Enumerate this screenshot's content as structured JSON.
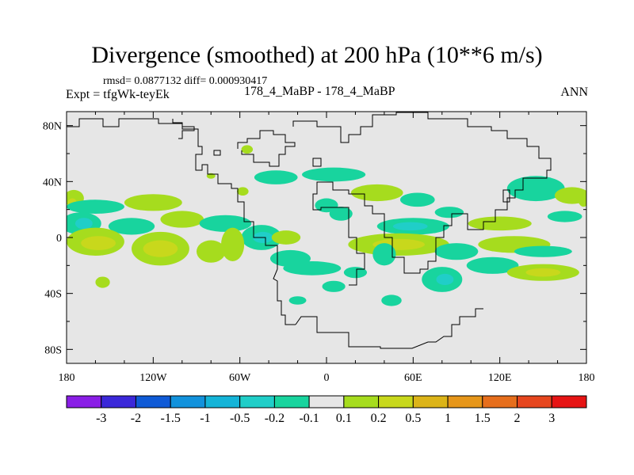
{
  "title": "Divergence (smoothed) at 200 hPa (10**6 m/s)",
  "stats_line": "rmsd= 0.0877132 diff= 0.000930417",
  "expt_line": "Expt = tfgWk-teyEk",
  "case_line": "178_4_MaBP - 178_4_MaBP",
  "season": "ANN",
  "colors": {
    "background": "#e6e6e6",
    "frame": "#000000",
    "coast": "#000000"
  },
  "chart_data": {
    "type": "heatmap",
    "projection": "cylindrical-equidistant",
    "title": "Divergence (smoothed) at 200 hPa (10**6 m/s)",
    "xlim": [
      -180,
      180
    ],
    "ylim": [
      -90,
      90
    ],
    "x_ticks": [
      {
        "value": -180,
        "label": "180"
      },
      {
        "value": -120,
        "label": "120W"
      },
      {
        "value": -60,
        "label": "60W"
      },
      {
        "value": 0,
        "label": "0"
      },
      {
        "value": 60,
        "label": "60E"
      },
      {
        "value": 120,
        "label": "120E"
      },
      {
        "value": 180,
        "label": "180"
      }
    ],
    "y_ticks": [
      {
        "value": 80,
        "label": "80N"
      },
      {
        "value": 40,
        "label": "40N"
      },
      {
        "value": 0,
        "label": "0"
      },
      {
        "value": -40,
        "label": "40S"
      },
      {
        "value": -80,
        "label": "80S"
      }
    ],
    "colorbar": {
      "labels": [
        "-3",
        "-2",
        "-1.5",
        "-1",
        "-0.5",
        "-0.2",
        "-0.1",
        "0.1",
        "0.2",
        "0.5",
        "1",
        "1.5",
        "2",
        "3"
      ],
      "colors": [
        "#8a1ee6",
        "#3b28d9",
        "#0f5ad6",
        "#1292dc",
        "#14b4d8",
        "#20cec8",
        "#18d49e",
        "#e6e6e6",
        "#a6dc1e",
        "#c8d81c",
        "#dcb418",
        "#e6961a",
        "#e66e1c",
        "#e6461e",
        "#e61414"
      ]
    },
    "levels": {
      "neg_small": "#18d49e",
      "neg_mid": "#20cec8",
      "pos_small": "#a6dc1e",
      "pos_mid": "#c8d81c"
    },
    "blobs": [
      {
        "lon": -175,
        "lat": 28,
        "rlon": 7,
        "rlat": 6,
        "level": "pos_small"
      },
      {
        "lon": -176,
        "lat": 25,
        "rlon": 3,
        "rlat": 3,
        "level": "pos_mid"
      },
      {
        "lon": -160,
        "lat": 22,
        "rlon": 20,
        "rlat": 5,
        "level": "neg_small"
      },
      {
        "lon": -120,
        "lat": 25,
        "rlon": 20,
        "rlat": 6,
        "level": "pos_small"
      },
      {
        "lon": -100,
        "lat": 13,
        "rlon": 15,
        "rlat": 6,
        "level": "pos_small"
      },
      {
        "lon": -170,
        "lat": 10,
        "rlon": 14,
        "rlat": 8,
        "level": "neg_small"
      },
      {
        "lon": -168,
        "lat": 10,
        "rlon": 6,
        "rlat": 4,
        "level": "neg_mid"
      },
      {
        "lon": -135,
        "lat": 8,
        "rlon": 16,
        "rlat": 6,
        "level": "neg_small"
      },
      {
        "lon": -70,
        "lat": 10,
        "rlon": 18,
        "rlat": 6,
        "level": "neg_small"
      },
      {
        "lon": -160,
        "lat": -3,
        "rlon": 20,
        "rlat": 10,
        "level": "pos_small"
      },
      {
        "lon": -158,
        "lat": -4,
        "rlon": 12,
        "rlat": 5,
        "level": "pos_mid"
      },
      {
        "lon": -115,
        "lat": -8,
        "rlon": 20,
        "rlat": 12,
        "level": "pos_small"
      },
      {
        "lon": -115,
        "lat": -8,
        "rlon": 12,
        "rlat": 6,
        "level": "pos_mid"
      },
      {
        "lon": -80,
        "lat": -10,
        "rlon": 10,
        "rlat": 8,
        "level": "pos_small"
      },
      {
        "lon": -45,
        "lat": 0,
        "rlon": 14,
        "rlat": 9,
        "level": "neg_small"
      },
      {
        "lon": -44,
        "lat": 0,
        "rlon": 7,
        "rlat": 4,
        "level": "neg_mid"
      },
      {
        "lon": -65,
        "lat": -5,
        "rlon": 8,
        "rlat": 12,
        "level": "pos_small"
      },
      {
        "lon": -28,
        "lat": 0,
        "rlon": 10,
        "rlat": 5,
        "level": "pos_small"
      },
      {
        "lon": -25,
        "lat": -15,
        "rlon": 14,
        "rlat": 6,
        "level": "neg_small"
      },
      {
        "lon": -155,
        "lat": -32,
        "rlon": 5,
        "rlat": 4,
        "level": "pos_small"
      },
      {
        "lon": -80,
        "lat": 44,
        "rlon": 3,
        "rlat": 2,
        "level": "pos_small"
      },
      {
        "lon": -35,
        "lat": 43,
        "rlon": 15,
        "rlat": 5,
        "level": "neg_small"
      },
      {
        "lon": 5,
        "lat": 45,
        "rlon": 22,
        "rlat": 5,
        "level": "neg_small"
      },
      {
        "lon": -58,
        "lat": 33,
        "rlon": 4,
        "rlat": 3,
        "level": "pos_small"
      },
      {
        "lon": 0,
        "lat": 23,
        "rlon": 8,
        "rlat": 5,
        "level": "neg_small"
      },
      {
        "lon": 35,
        "lat": 32,
        "rlon": 18,
        "rlat": 6,
        "level": "pos_small"
      },
      {
        "lon": 10,
        "lat": 17,
        "rlon": 8,
        "rlat": 5,
        "level": "neg_small"
      },
      {
        "lon": 63,
        "lat": 27,
        "rlon": 12,
        "rlat": 5,
        "level": "neg_small"
      },
      {
        "lon": 60,
        "lat": 8,
        "rlon": 25,
        "rlat": 6,
        "level": "neg_small"
      },
      {
        "lon": 58,
        "lat": 8,
        "rlon": 12,
        "rlat": 3,
        "level": "neg_mid"
      },
      {
        "lon": 50,
        "lat": -5,
        "rlon": 35,
        "rlat": 8,
        "level": "pos_small"
      },
      {
        "lon": 50,
        "lat": -5,
        "rlon": 18,
        "rlat": 4,
        "level": "pos_mid"
      },
      {
        "lon": 40,
        "lat": -12,
        "rlon": 8,
        "rlat": 8,
        "level": "neg_small"
      },
      {
        "lon": 90,
        "lat": -10,
        "rlon": 15,
        "rlat": 6,
        "level": "neg_small"
      },
      {
        "lon": 130,
        "lat": -5,
        "rlon": 25,
        "rlat": 6,
        "level": "pos_small"
      },
      {
        "lon": 150,
        "lat": -10,
        "rlon": 20,
        "rlat": 4,
        "level": "neg_small"
      },
      {
        "lon": 80,
        "lat": -30,
        "rlon": 14,
        "rlat": 9,
        "level": "neg_small"
      },
      {
        "lon": 82,
        "lat": -30,
        "rlon": 6,
        "rlat": 4,
        "level": "neg_mid"
      },
      {
        "lon": 115,
        "lat": -20,
        "rlon": 18,
        "rlat": 6,
        "level": "neg_small"
      },
      {
        "lon": 150,
        "lat": -25,
        "rlon": 25,
        "rlat": 6,
        "level": "pos_small"
      },
      {
        "lon": 150,
        "lat": -25,
        "rlon": 12,
        "rlat": 3,
        "level": "pos_mid"
      },
      {
        "lon": -10,
        "lat": -22,
        "rlon": 20,
        "rlat": 5,
        "level": "neg_small"
      },
      {
        "lon": 5,
        "lat": -35,
        "rlon": 8,
        "rlat": 4,
        "level": "neg_small"
      },
      {
        "lon": -20,
        "lat": -45,
        "rlon": 6,
        "rlat": 3,
        "level": "neg_small"
      },
      {
        "lon": 45,
        "lat": -45,
        "rlon": 7,
        "rlat": 4,
        "level": "neg_small"
      },
      {
        "lon": 20,
        "lat": -25,
        "rlon": 8,
        "rlat": 4,
        "level": "neg_small"
      },
      {
        "lon": 145,
        "lat": 35,
        "rlon": 20,
        "rlat": 9,
        "level": "neg_small"
      },
      {
        "lon": 170,
        "lat": 30,
        "rlon": 12,
        "rlat": 6,
        "level": "pos_small"
      },
      {
        "lon": 165,
        "lat": 15,
        "rlon": 12,
        "rlat": 4,
        "level": "neg_small"
      },
      {
        "lon": 178,
        "lat": 28,
        "rlon": 4,
        "rlat": 6,
        "level": "pos_small"
      },
      {
        "lon": 120,
        "lat": 10,
        "rlon": 22,
        "rlat": 5,
        "level": "pos_small"
      },
      {
        "lon": 85,
        "lat": 18,
        "rlon": 10,
        "rlat": 4,
        "level": "neg_small"
      },
      {
        "lon": -55,
        "lat": 63,
        "rlon": 4,
        "rlat": 3,
        "level": "pos_small"
      }
    ]
  }
}
